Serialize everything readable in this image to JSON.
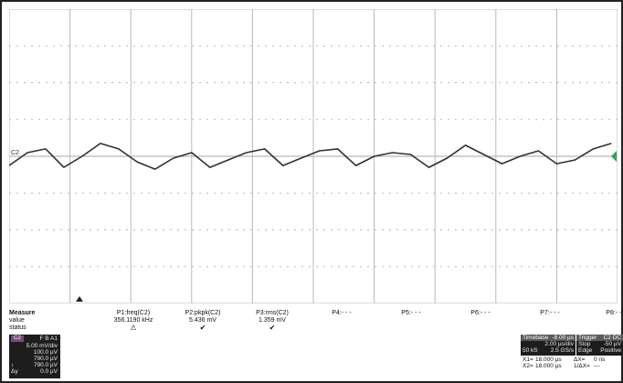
{
  "trace": {
    "channel_marker": "C2",
    "line_color": "#3a2a3a",
    "grid_color": "#b8b8b8",
    "trigger_marker_color": "#2fa84f"
  },
  "chart_data": {
    "type": "line",
    "title": "",
    "xlabel": "",
    "ylabel": "",
    "divisions_x": 10,
    "divisions_y": 8,
    "series": [
      {
        "x": [
          0.0,
          0.3,
          0.6,
          0.9,
          1.2,
          1.5,
          1.8,
          2.1,
          2.4,
          2.7,
          3.0,
          3.3,
          3.6,
          3.9,
          4.2,
          4.5,
          4.8,
          5.1,
          5.4,
          5.7,
          6.0,
          6.3,
          6.6,
          6.9,
          7.2,
          7.5,
          7.8,
          8.1,
          8.4,
          8.7,
          9.0,
          9.3,
          9.6,
          9.9
        ],
        "y": [
          -0.25,
          0.1,
          0.2,
          -0.3,
          0.0,
          0.35,
          0.2,
          -0.15,
          -0.35,
          -0.05,
          0.1,
          -0.3,
          -0.1,
          0.1,
          0.2,
          -0.25,
          -0.05,
          0.15,
          0.2,
          -0.25,
          0.0,
          0.1,
          0.05,
          -0.3,
          -0.05,
          0.3,
          0.05,
          -0.2,
          0.0,
          0.15,
          -0.2,
          -0.1,
          0.2,
          0.35
        ]
      }
    ]
  },
  "measure": {
    "title": "Measure",
    "row_value": "value",
    "row_status": "status",
    "params": [
      {
        "name": "P1:freq(C2)",
        "value": "356.1190 kHz",
        "status": "⚠"
      },
      {
        "name": "P2:pkpk(C2)",
        "value": "5.436 mV",
        "status": "✔"
      },
      {
        "name": "P3:rms(C2)",
        "value": "1.359 mV",
        "status": "✔"
      },
      {
        "name": "P4:- - -",
        "value": "",
        "status": ""
      },
      {
        "name": "P5:- - -",
        "value": "",
        "status": ""
      },
      {
        "name": "P6:- - -",
        "value": "",
        "status": ""
      },
      {
        "name": "P7:- - -",
        "value": "",
        "status": ""
      },
      {
        "name": "P8:- - -",
        "value": "",
        "status": ""
      }
    ]
  },
  "channel": {
    "tag": "C2",
    "flags": "F B A1",
    "lines": [
      {
        "label": "",
        "value": "5.00 mV/div"
      },
      {
        "label": "",
        "value": "100.0 µV"
      },
      {
        "label": "",
        "value": "790.0 µV"
      },
      {
        "label": "↕",
        "value": "790.0 µV"
      },
      {
        "label": "Δy",
        "value": "0.0 µV"
      }
    ]
  },
  "timebase": {
    "label": "Timebase",
    "delay": "-8.00 µs",
    "row1_left": "",
    "row1_right": "2.00 µs/div",
    "row2_left": "50 kS",
    "row2_right": "2.5 GS/s",
    "trigger_label": "Trigger",
    "trigger_src": "C2 DC",
    "trigger_mode": "Stop",
    "trigger_level": "-50 µV",
    "trigger_type": "Edge",
    "trigger_slope": "Positive"
  },
  "cursors": [
    {
      "label": "X1=",
      "value": "18.000 µs",
      "dlabel": "ΔX=",
      "dvalue": "0 ns"
    },
    {
      "label": "X2=",
      "value": "18.000 µs",
      "dlabel": "1/ΔX=",
      "dvalue": "---"
    }
  ]
}
